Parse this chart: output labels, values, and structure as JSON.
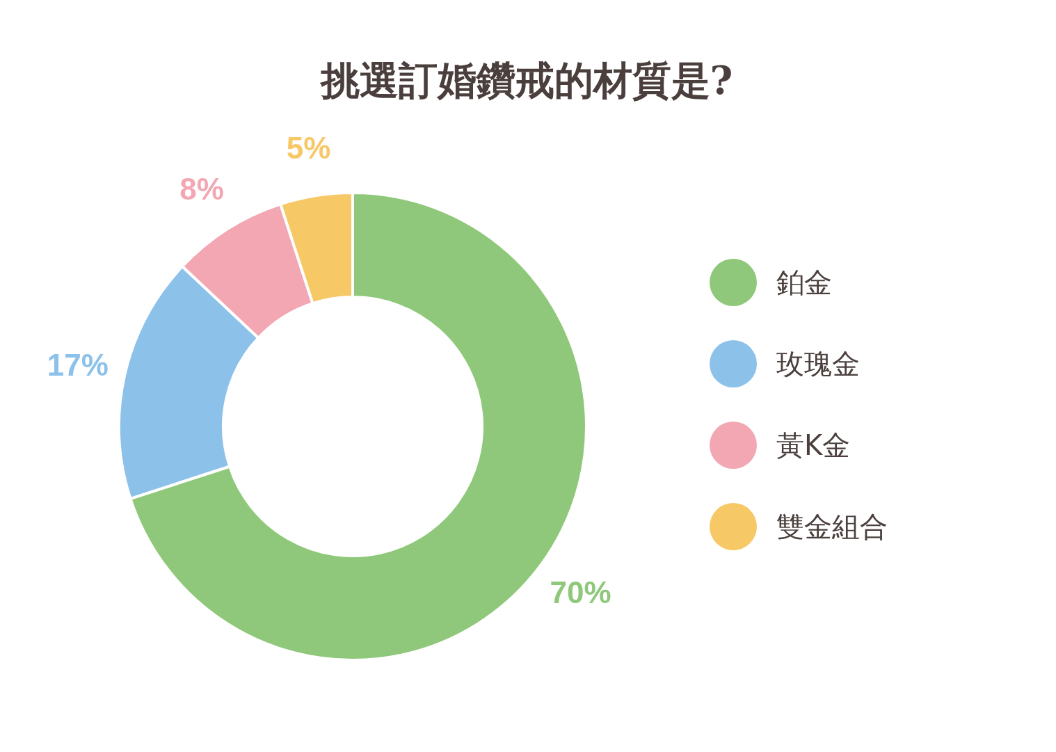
{
  "chart_data": {
    "type": "donut",
    "title": "挑選訂婚鑽戒的材質是?",
    "categories": [
      "鉑金",
      "玫瑰金",
      "黃K金",
      "雙金組合"
    ],
    "values": [
      70,
      17,
      8,
      5
    ],
    "colors": [
      "#8fc87a",
      "#8cc1ea",
      "#f2a7b3",
      "#f6c866"
    ],
    "value_labels": [
      "70%",
      "17%",
      "8%",
      "5%"
    ],
    "legend": "right"
  }
}
